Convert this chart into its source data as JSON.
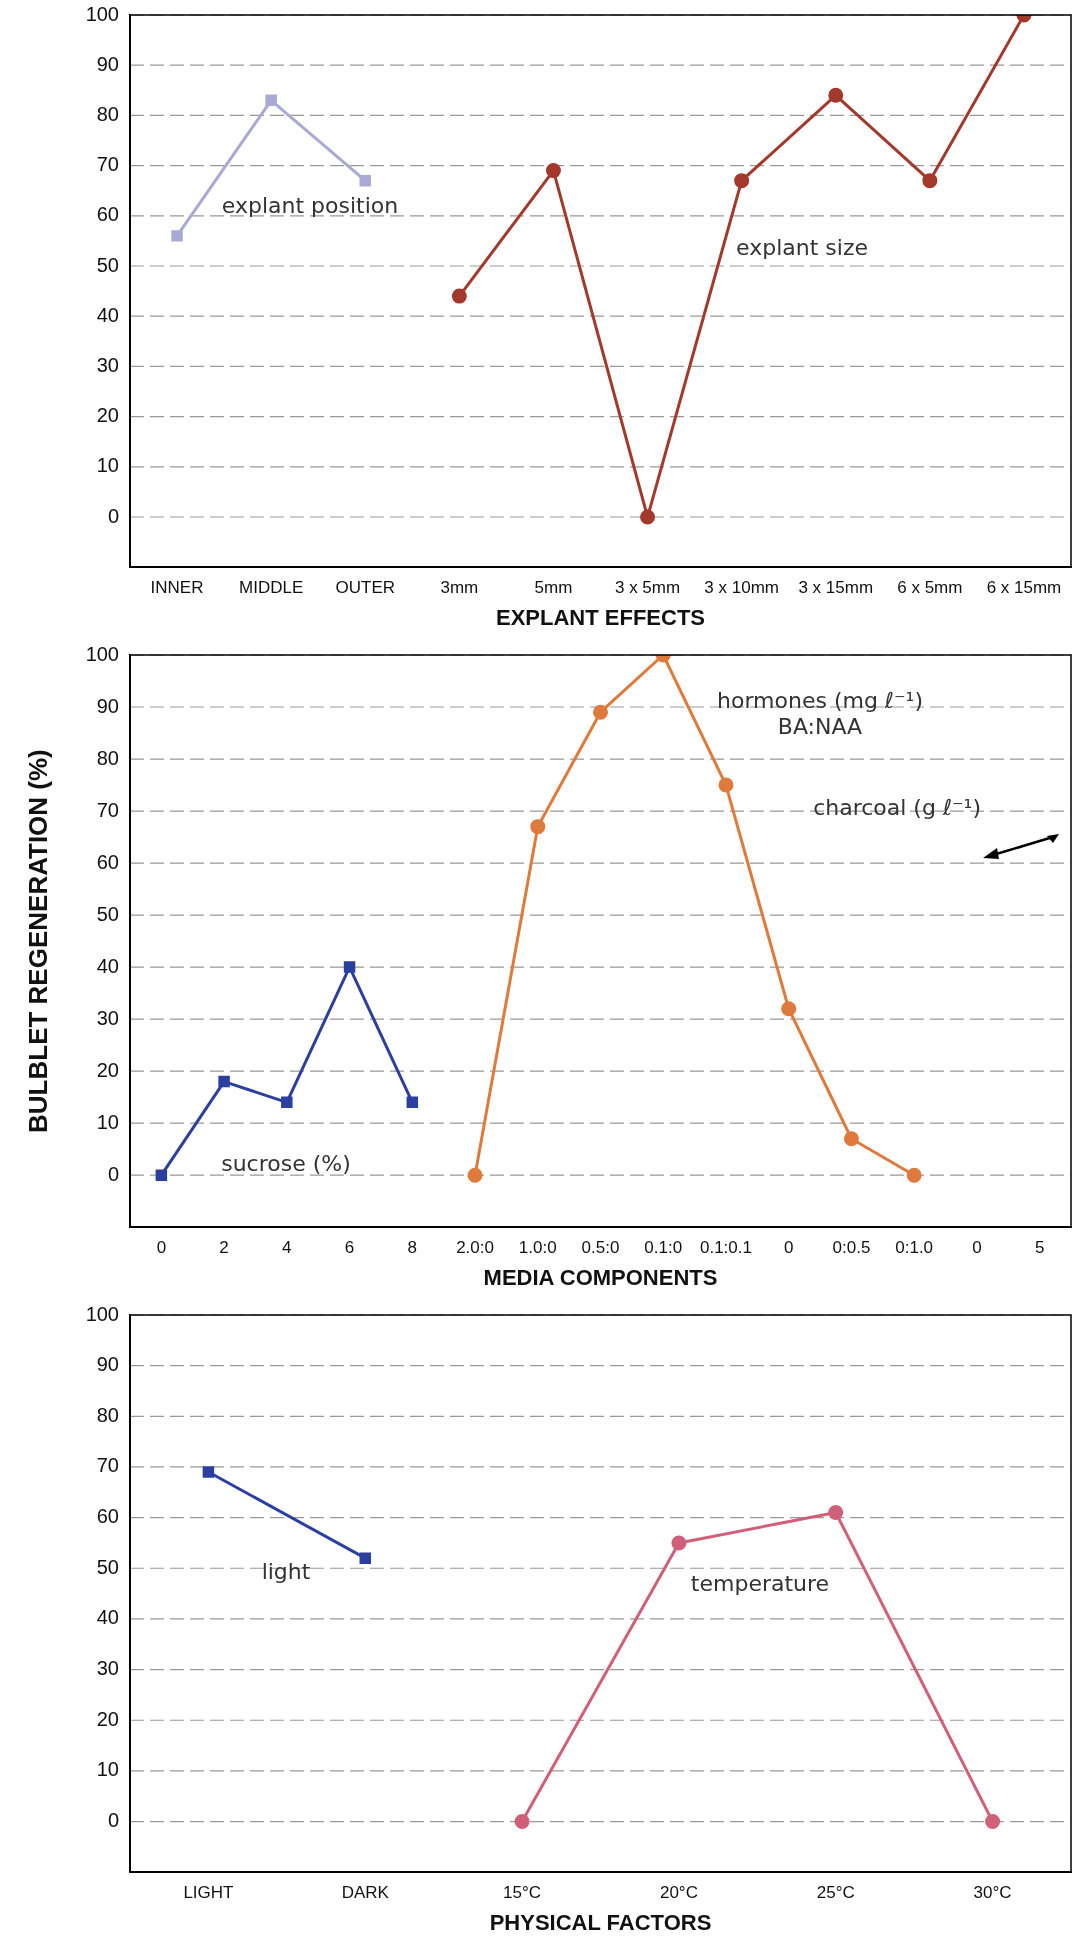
{
  "chart_data": [
    {
      "type": "line",
      "xlabel": "EXPLANT EFFECTS",
      "categories": [
        "INNER",
        "MIDDLE",
        "OUTER",
        "3mm",
        "5mm",
        "3 x 5mm",
        "3 x 10mm",
        "3 x 15mm",
        "6 x 5mm",
        "6 x 15mm"
      ],
      "series": [
        {
          "name": "explant position",
          "color": "#a9a9d4",
          "marker": "square",
          "values": [
            56,
            83,
            67,
            null,
            null,
            null,
            null,
            null,
            null,
            null
          ]
        },
        {
          "name": "explant size",
          "color": "#a3392a",
          "marker": "circle",
          "values": [
            null,
            null,
            null,
            44,
            69,
            0,
            67,
            84,
            67,
            100
          ]
        }
      ],
      "ylim": [
        -10,
        100
      ],
      "yticks": [
        0,
        10,
        20,
        30,
        40,
        50,
        60,
        70,
        80,
        90,
        100
      ],
      "grid": "y",
      "legend": false,
      "line_style": "solid"
    },
    {
      "type": "line",
      "xlabel": "MEDIA COMPONENTS",
      "ylabel": "BULBLET REGENERATION (%)",
      "categories": [
        "0",
        "2",
        "4",
        "6",
        "8",
        "2.0:0",
        "1.0:0",
        "0.5:0",
        "0.1:0",
        "0.1:0.1",
        "0",
        "0:0.5",
        "0:1.0",
        "0",
        "5"
      ],
      "series": [
        {
          "name": "sucrose (%)",
          "color": "#2b3fa0",
          "marker": "square",
          "values": [
            0,
            18,
            14,
            40,
            14,
            null,
            null,
            null,
            null,
            null,
            null,
            null,
            null,
            null,
            null
          ]
        },
        {
          "name": "hormones (mg ℓ⁻¹)\nBA:NAA",
          "color": "#e07a3c",
          "marker": "circle",
          "values": [
            null,
            null,
            null,
            null,
            null,
            0,
            67,
            89,
            100,
            75,
            32,
            7,
            0,
            null,
            null
          ]
        }
      ],
      "annotations": [
        "charcoal (g ℓ⁻¹)"
      ],
      "ylim": [
        -10,
        100
      ],
      "yticks": [
        0,
        10,
        20,
        30,
        40,
        50,
        60,
        70,
        80,
        90,
        100
      ],
      "grid": "y",
      "legend": false,
      "line_style": "solid"
    },
    {
      "type": "line",
      "xlabel": "PHYSICAL FACTORS",
      "categories": [
        "LIGHT",
        "DARK",
        "15°C",
        "20°C",
        "25°C",
        "30°C"
      ],
      "series": [
        {
          "name": "light",
          "color": "#2b3fa0",
          "marker": "square",
          "values": [
            69,
            52,
            null,
            null,
            null,
            null
          ]
        },
        {
          "name": "temperature",
          "color": "#d0607a",
          "marker": "circle",
          "values": [
            null,
            null,
            0,
            55,
            61,
            0
          ]
        }
      ],
      "ylim": [
        -10,
        100
      ],
      "yticks": [
        0,
        10,
        20,
        30,
        40,
        50,
        60,
        70,
        80,
        90,
        100
      ],
      "grid": "y",
      "legend": false,
      "line_style": "solid"
    }
  ]
}
